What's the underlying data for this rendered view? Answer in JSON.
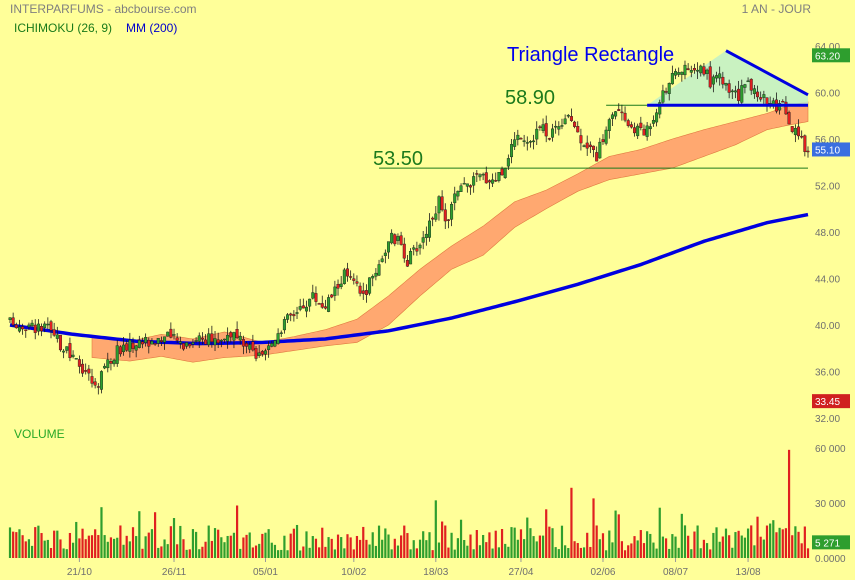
{
  "header": {
    "title": "INTERPARFUMS - abcbourse.com",
    "period": "1 AN - JOUR",
    "indicator_ichimoku": "ICHIMOKU (26, 9)",
    "indicator_ma": "MM (200)",
    "volume_label": "VOLUME"
  },
  "annotations": {
    "pattern": "Triangle Rectangle",
    "resistance_label": "58.90",
    "support_label": "53.50"
  },
  "badges": {
    "high": "63.20",
    "last": "55.10",
    "low": "33.45",
    "volume": "5 271"
  },
  "colors": {
    "background": "#ffff99",
    "candle_up": "#2e9e2e",
    "candle_down": "#e02020",
    "cloud": "#ffa870",
    "ma200": "#0000e0",
    "badge_high": "#2e9e2e",
    "badge_last": "#3a6fe0",
    "badge_low": "#d02020",
    "badge_volume": "#2e9e2e"
  },
  "chart_data": {
    "type": "candlestick",
    "title": "INTERPARFUMS",
    "price_axis": {
      "ticks": [
        "64.00",
        "60.00",
        "56.00",
        "52.00",
        "48.00",
        "44.00",
        "40.00",
        "36.00",
        "32.00"
      ],
      "range": [
        32,
        64
      ]
    },
    "volume_axis": {
      "ticks": [
        "60 000",
        "30 000",
        "0.0000"
      ],
      "range": [
        0,
        60000
      ]
    },
    "date_labels": [
      "21/10",
      "26/11",
      "05/01",
      "10/02",
      "18/03",
      "27/04",
      "02/06",
      "08/07",
      "13/08"
    ],
    "price_path": [
      [
        0,
        40.2
      ],
      [
        12,
        39.6
      ],
      [
        20,
        37.0
      ],
      [
        24,
        36.1
      ],
      [
        27,
        34.6
      ],
      [
        30,
        36.5
      ],
      [
        35,
        38.0
      ],
      [
        42,
        38.6
      ],
      [
        50,
        38.9
      ],
      [
        55,
        38.4
      ],
      [
        60,
        39.0
      ],
      [
        65,
        38.6
      ],
      [
        70,
        39.3
      ],
      [
        75,
        38.0
      ],
      [
        80,
        37.0
      ],
      [
        85,
        39.5
      ],
      [
        88,
        40.5
      ],
      [
        92,
        41.5
      ],
      [
        96,
        42.5
      ],
      [
        100,
        41.6
      ],
      [
        103,
        43.0
      ],
      [
        106,
        44.4
      ],
      [
        109,
        43.5
      ],
      [
        112,
        42.5
      ],
      [
        115,
        44.2
      ],
      [
        118,
        46.0
      ],
      [
        121,
        47.5
      ],
      [
        124,
        47.0
      ],
      [
        126,
        45.5
      ],
      [
        128,
        46.3
      ],
      [
        131,
        47.5
      ],
      [
        134,
        49.5
      ],
      [
        136,
        50.5
      ],
      [
        138,
        48.5
      ],
      [
        141,
        51.0
      ],
      [
        144,
        51.9
      ],
      [
        147,
        52.5
      ],
      [
        150,
        52.8
      ],
      [
        153,
        52.5
      ],
      [
        156,
        53.2
      ],
      [
        159,
        55.5
      ],
      [
        162,
        56.5
      ],
      [
        165,
        56.0
      ],
      [
        168,
        57.0
      ],
      [
        171,
        56.5
      ],
      [
        174,
        57.4
      ],
      [
        177,
        58.3
      ],
      [
        180,
        56.5
      ],
      [
        183,
        55.5
      ],
      [
        186,
        54.5
      ],
      [
        189,
        57.0
      ],
      [
        192,
        58.5
      ],
      [
        195,
        57.5
      ],
      [
        198,
        57.0
      ],
      [
        201,
        56.5
      ],
      [
        204,
        58.0
      ],
      [
        207,
        60.2
      ],
      [
        210,
        61.2
      ],
      [
        213,
        62.0
      ],
      [
        216,
        61.5
      ],
      [
        219,
        62.3
      ],
      [
        222,
        61.0
      ],
      [
        225,
        61.3
      ],
      [
        228,
        60.0
      ],
      [
        231,
        59.7
      ],
      [
        234,
        60.8
      ],
      [
        237,
        60.0
      ],
      [
        240,
        59.4
      ],
      [
        243,
        58.5
      ],
      [
        245,
        58.9
      ],
      [
        247,
        57.0
      ],
      [
        249,
        56.5
      ],
      [
        251,
        55.8
      ],
      [
        253,
        55.1
      ]
    ],
    "ma200": [
      [
        0,
        40.0
      ],
      [
        20,
        39.2
      ],
      [
        40,
        38.6
      ],
      [
        60,
        38.4
      ],
      [
        80,
        38.5
      ],
      [
        100,
        38.8
      ],
      [
        120,
        39.5
      ],
      [
        140,
        40.6
      ],
      [
        160,
        42.0
      ],
      [
        180,
        43.5
      ],
      [
        200,
        45.2
      ],
      [
        220,
        47.2
      ],
      [
        240,
        48.8
      ],
      [
        253,
        49.5
      ]
    ],
    "cloud_top": [
      [
        26,
        39.0
      ],
      [
        38,
        38.6
      ],
      [
        48,
        39.2
      ],
      [
        58,
        38.8
      ],
      [
        68,
        39.4
      ],
      [
        80,
        38.5
      ],
      [
        90,
        39.0
      ],
      [
        100,
        39.6
      ],
      [
        110,
        40.5
      ],
      [
        120,
        42.5
      ],
      [
        130,
        44.8
      ],
      [
        140,
        46.8
      ],
      [
        150,
        48.5
      ],
      [
        160,
        50.6
      ],
      [
        170,
        51.6
      ],
      [
        180,
        53.0
      ],
      [
        190,
        54.5
      ],
      [
        200,
        55.1
      ],
      [
        210,
        56.0
      ],
      [
        220,
        56.8
      ],
      [
        230,
        57.5
      ],
      [
        240,
        58.2
      ],
      [
        247,
        58.9
      ],
      [
        253,
        59.2
      ]
    ],
    "cloud_bottom": [
      [
        26,
        37.2
      ],
      [
        38,
        36.9
      ],
      [
        48,
        37.3
      ],
      [
        58,
        36.8
      ],
      [
        68,
        37.2
      ],
      [
        80,
        37.4
      ],
      [
        90,
        37.8
      ],
      [
        100,
        38.2
      ],
      [
        110,
        38.5
      ],
      [
        120,
        40.0
      ],
      [
        130,
        42.5
      ],
      [
        140,
        44.8
      ],
      [
        150,
        46.0
      ],
      [
        160,
        48.4
      ],
      [
        170,
        50.0
      ],
      [
        180,
        51.5
      ],
      [
        190,
        52.5
      ],
      [
        200,
        53.0
      ],
      [
        210,
        53.5
      ],
      [
        220,
        54.5
      ],
      [
        230,
        55.5
      ],
      [
        240,
        56.8
      ],
      [
        247,
        57.2
      ],
      [
        253,
        57.5
      ]
    ],
    "triangle": {
      "apex_high": [
        227,
        63.6
      ],
      "end_high": [
        253,
        59.8
      ],
      "base_start": [
        202,
        58.9
      ],
      "base_end": [
        253,
        58.9
      ]
    },
    "levels": [
      {
        "label": "58.90",
        "value": 58.9,
        "x_start": 189
      },
      {
        "label": "53.50",
        "value": 53.5,
        "x_start": 117
      }
    ],
    "volume_spike": {
      "x": 247,
      "value": 59000
    },
    "last_volume": 5271
  }
}
